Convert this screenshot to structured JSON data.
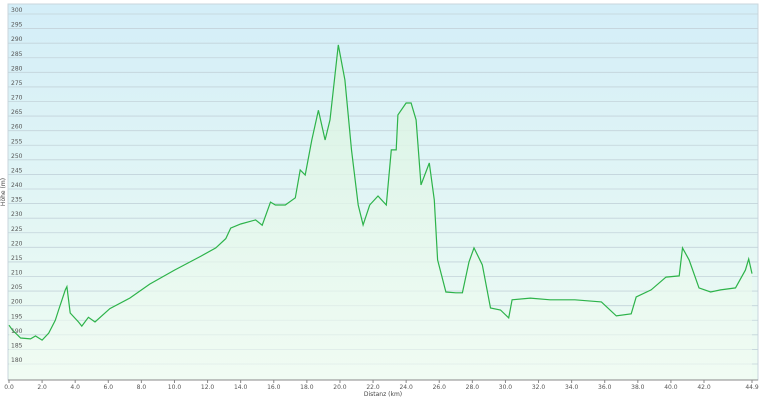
{
  "chart_data": {
    "type": "area",
    "title": "",
    "xlabel": "Distanz  (km)",
    "ylabel": "Höhe (m)",
    "xlim": [
      0,
      44.9
    ],
    "ylim": [
      176,
      302
    ],
    "x_ticks": [
      "0.0",
      "2.0",
      "4.0",
      "6.0",
      "8.0",
      "10.0",
      "12.0",
      "14.0",
      "16.0",
      "18.0",
      "20.0",
      "22.0",
      "24.0",
      "26.0",
      "28.0",
      "30.0",
      "32.0",
      "34.0",
      "36.0",
      "38.0",
      "40.0",
      "42.0",
      "44.9"
    ],
    "y_ticks": [
      180,
      185,
      190,
      195,
      200,
      205,
      210,
      215,
      220,
      225,
      230,
      235,
      240,
      245,
      250,
      255,
      260,
      265,
      270,
      275,
      280,
      285,
      290,
      295,
      300
    ],
    "grid": "horizontal",
    "colors": {
      "line": "#2db34a",
      "fill_top": "#d8f3e0",
      "bg_top": "#d4eef8",
      "bg_bottom": "#eefcf2"
    },
    "series": [
      {
        "points": [
          [
            0,
            193.3
          ],
          [
            0.2,
            191.7
          ],
          [
            0.7,
            188.9
          ],
          [
            1.3,
            188.6
          ],
          [
            1.6,
            189.6
          ],
          [
            2.0,
            188.2
          ],
          [
            2.4,
            190.6
          ],
          [
            2.8,
            195
          ],
          [
            3.0,
            198.5
          ],
          [
            3.2,
            202
          ],
          [
            3.4,
            205.4
          ],
          [
            3.5,
            206.5
          ],
          [
            3.7,
            197.5
          ],
          [
            4.2,
            194.4
          ],
          [
            4.4,
            193
          ],
          [
            4.8,
            196
          ],
          [
            5.2,
            194.4
          ],
          [
            6.1,
            199
          ],
          [
            7.3,
            202.6
          ],
          [
            8.5,
            207.4
          ],
          [
            10.0,
            212.2
          ],
          [
            11.6,
            217
          ],
          [
            12.5,
            219.8
          ],
          [
            13.1,
            223
          ],
          [
            13.4,
            226.6
          ],
          [
            14.0,
            228
          ],
          [
            14.9,
            229.4
          ],
          [
            15.3,
            227.6
          ],
          [
            15.8,
            235.5
          ],
          [
            16.1,
            234.5
          ],
          [
            16.7,
            234.5
          ],
          [
            17.3,
            237
          ],
          [
            17.6,
            246.5
          ],
          [
            17.9,
            244.8
          ],
          [
            18.3,
            256.8
          ],
          [
            18.7,
            267
          ],
          [
            19.1,
            256.8
          ],
          [
            19.4,
            263.7
          ],
          [
            19.9,
            289.4
          ],
          [
            20.3,
            277.4
          ],
          [
            20.7,
            253.4
          ],
          [
            21.1,
            234.5
          ],
          [
            21.4,
            227.7
          ],
          [
            21.8,
            234.5
          ],
          [
            22.3,
            237.6
          ],
          [
            22.8,
            234.5
          ],
          [
            23.1,
            253.4
          ],
          [
            23.4,
            253.4
          ],
          [
            23.5,
            265.4
          ],
          [
            24.0,
            269.5
          ],
          [
            24.3,
            269.5
          ],
          [
            24.6,
            263.7
          ],
          [
            24.9,
            241.4
          ],
          [
            25.4,
            248.9
          ],
          [
            25.7,
            236.2
          ],
          [
            25.9,
            215.7
          ],
          [
            26.4,
            204.7
          ],
          [
            27.0,
            204.4
          ],
          [
            27.4,
            204.4
          ],
          [
            27.8,
            215
          ],
          [
            28.1,
            219.8
          ],
          [
            28.6,
            214
          ],
          [
            29.1,
            199.2
          ],
          [
            29.7,
            198.5
          ],
          [
            30.2,
            195.8
          ],
          [
            30.4,
            202
          ],
          [
            31.5,
            202.6
          ],
          [
            32.7,
            202
          ],
          [
            34.2,
            202
          ],
          [
            35.8,
            201.3
          ],
          [
            36.7,
            196.5
          ],
          [
            37.6,
            197.2
          ],
          [
            37.9,
            203
          ],
          [
            38.8,
            205.4
          ],
          [
            39.7,
            209.8
          ],
          [
            40.5,
            210.2
          ],
          [
            40.7,
            219.8
          ],
          [
            41.1,
            215.7
          ],
          [
            41.7,
            206.1
          ],
          [
            42.4,
            204.7
          ],
          [
            43.0,
            205.4
          ],
          [
            43.9,
            206.1
          ],
          [
            44.5,
            212.2
          ],
          [
            44.7,
            216
          ],
          [
            44.9,
            211
          ]
        ]
      }
    ]
  }
}
